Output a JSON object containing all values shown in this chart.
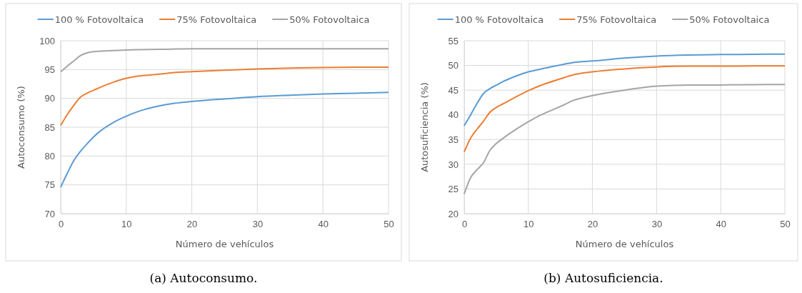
{
  "chart_data": [
    {
      "type": "line",
      "xlabel": "Número de vehículos",
      "ylabel": "Autoconsumo (%)",
      "annotations": [
        "(a) Autoconsumo."
      ],
      "legend": "top",
      "grid": true,
      "marker": "none",
      "line_style": "solid",
      "xlim": [
        0,
        50
      ],
      "xticks": [
        0,
        10,
        20,
        30,
        40,
        50
      ],
      "ylim": [
        70,
        100
      ],
      "yticks": [
        70,
        75,
        80,
        85,
        90,
        95,
        100
      ],
      "x": [
        0,
        1,
        2,
        3,
        4,
        5,
        6,
        8,
        10,
        12,
        15,
        17,
        20,
        25,
        30,
        35,
        40,
        45,
        50
      ],
      "series": [
        {
          "name": "100 % Fotovoltaica",
          "color": "#5b9bd5",
          "values": [
            74.6,
            77,
            79.2,
            80.8,
            82.1,
            83.3,
            84.3,
            85.8,
            86.9,
            87.8,
            88.7,
            89.1,
            89.45,
            89.9,
            90.3,
            90.55,
            90.75,
            90.9,
            91.05
          ]
        },
        {
          "name": "75% Fotovoltaica",
          "color": "#ed7d31",
          "values": [
            85.3,
            87.2,
            88.8,
            90.2,
            90.9,
            91.4,
            91.9,
            92.8,
            93.5,
            93.9,
            94.2,
            94.45,
            94.65,
            94.9,
            95.1,
            95.25,
            95.35,
            95.4,
            95.4
          ]
        },
        {
          "name": "50% Fotovoltaica",
          "color": "#a5a5a5",
          "values": [
            94.6,
            95.6,
            96.5,
            97.4,
            97.9,
            98.1,
            98.2,
            98.3,
            98.4,
            98.45,
            98.5,
            98.55,
            98.6,
            98.6,
            98.6,
            98.6,
            98.6,
            98.6,
            98.6
          ]
        }
      ]
    },
    {
      "type": "line",
      "xlabel": "Número de vehículos",
      "ylabel": "Autosuficiencia (%)",
      "annotations": [
        "(b) Autosuficiencia."
      ],
      "legend": "top",
      "grid": true,
      "marker": "none",
      "line_style": "solid",
      "xlim": [
        0,
        50
      ],
      "xticks": [
        0,
        10,
        20,
        30,
        40,
        50
      ],
      "ylim": [
        20,
        55
      ],
      "yticks": [
        20,
        25,
        30,
        35,
        40,
        45,
        50,
        55
      ],
      "x": [
        0,
        1,
        2,
        3,
        4,
        5,
        6,
        8,
        10,
        12,
        15,
        17,
        20,
        25,
        30,
        35,
        40,
        45,
        50
      ],
      "series": [
        {
          "name": "100 % Fotovoltaica",
          "color": "#5b9bd5",
          "values": [
            37.8,
            40,
            42.3,
            44.3,
            45.3,
            46,
            46.7,
            47.8,
            48.7,
            49.3,
            50.1,
            50.6,
            50.9,
            51.5,
            51.9,
            52.1,
            52.2,
            52.25,
            52.3
          ]
        },
        {
          "name": "75% Fotovoltaica",
          "color": "#ed7d31",
          "values": [
            32.5,
            35.3,
            37.1,
            38.7,
            40.5,
            41.5,
            42.2,
            43.6,
            44.9,
            46,
            47.3,
            48.1,
            48.7,
            49.3,
            49.7,
            49.85,
            49.85,
            49.9,
            49.9
          ]
        },
        {
          "name": "50% Fotovoltaica",
          "color": "#a5a5a5",
          "values": [
            24,
            27.3,
            28.9,
            30.3,
            32.8,
            34.2,
            35.2,
            37,
            38.6,
            40,
            41.7,
            42.9,
            43.9,
            45,
            45.8,
            46.05,
            46.05,
            46.1,
            46.15
          ]
        }
      ]
    }
  ]
}
